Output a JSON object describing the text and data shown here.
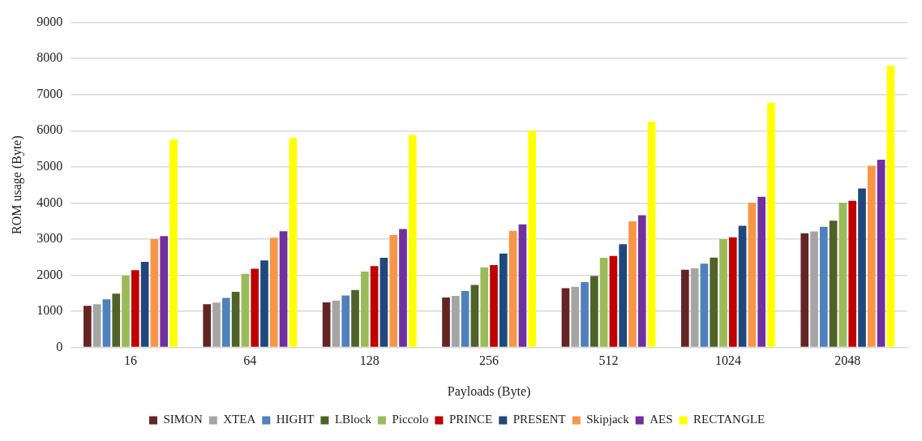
{
  "chart_data": {
    "type": "bar",
    "xlabel": "Payloads (Byte)",
    "ylabel": "ROM usage (Byte)",
    "categories": [
      "16",
      "64",
      "128",
      "256",
      "512",
      "1024",
      "2048"
    ],
    "series": [
      {
        "name": "SIMON",
        "color": "#632523",
        "values": [
          1150,
          1200,
          1250,
          1380,
          1640,
          2150,
          3160
        ]
      },
      {
        "name": "XTEA",
        "color": "#a5a5a5",
        "values": [
          1200,
          1240,
          1300,
          1430,
          1680,
          2190,
          3210
        ]
      },
      {
        "name": "HIGHT",
        "color": "#4f81bd",
        "values": [
          1330,
          1370,
          1440,
          1560,
          1810,
          2320,
          3340
        ]
      },
      {
        "name": "LBlock",
        "color": "#4f6228",
        "values": [
          1490,
          1540,
          1590,
          1730,
          1980,
          2490,
          3510
        ]
      },
      {
        "name": "Piccolo",
        "color": "#9bbb59",
        "values": [
          1990,
          2040,
          2100,
          2220,
          2480,
          3000,
          4010
        ]
      },
      {
        "name": "PRINCE",
        "color": "#c00000",
        "values": [
          2140,
          2180,
          2250,
          2280,
          2530,
          3050,
          4060
        ]
      },
      {
        "name": "PRESENT",
        "color": "#1f497d",
        "values": [
          2370,
          2410,
          2480,
          2600,
          2860,
          3370,
          4400
        ]
      },
      {
        "name": "Skipjack",
        "color": "#f79646",
        "values": [
          3000,
          3040,
          3110,
          3230,
          3490,
          4010,
          5030
        ]
      },
      {
        "name": "AES",
        "color": "#7030a0",
        "values": [
          3080,
          3220,
          3280,
          3410,
          3660,
          4170,
          5200
        ]
      },
      {
        "name": "RECTANGLE",
        "color": "#ffff00",
        "values": [
          5760,
          5800,
          5880,
          6000,
          6250,
          6770,
          7800
        ]
      }
    ],
    "ylim": [
      0,
      9000
    ],
    "yticks": [
      0,
      1000,
      2000,
      3000,
      4000,
      5000,
      6000,
      7000,
      8000,
      9000
    ],
    "grid": "y",
    "legend": "bottom"
  }
}
